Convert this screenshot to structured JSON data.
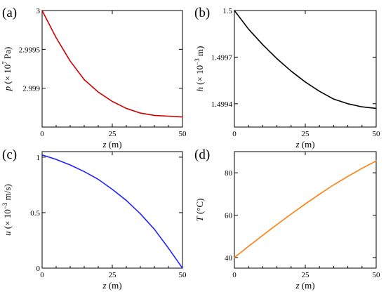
{
  "chart_data": [
    {
      "panel": "(a)",
      "type": "line",
      "xlabel": "z (m)",
      "ylabel": "p (× 10⁷ Pa)",
      "ylabel_parts": {
        "var": "p",
        "pre": " (× 10",
        "exp": "7",
        "post": " Pa)"
      },
      "xlabel_parts": {
        "var": "z",
        "post": " (m)"
      },
      "xlim": [
        0,
        50
      ],
      "ylim": [
        2.9985,
        3.0
      ],
      "xticks": [
        0,
        25,
        50
      ],
      "xtick_labels": [
        "0",
        "25",
        "50"
      ],
      "yticks": [
        3.0,
        2.9995,
        2.999
      ],
      "ytick_labels": [
        "3",
        "2.9995",
        "2.999"
      ],
      "color": "#cc0000",
      "series": [
        {
          "x": [
            0,
            5,
            10,
            15,
            20,
            25,
            30,
            35,
            40,
            45,
            50
          ],
          "y": [
            3.0,
            2.99965,
            2.99935,
            2.99911,
            2.99895,
            2.99883,
            2.99874,
            2.99868,
            2.99865,
            2.99864,
            2.99863
          ]
        }
      ]
    },
    {
      "panel": "(b)",
      "type": "line",
      "xlabel": "z (m)",
      "ylabel": "h (× 10⁻³ m)",
      "ylabel_parts": {
        "var": "h",
        "pre": " (× 10",
        "exp": "−3",
        "post": " m)"
      },
      "xlabel_parts": {
        "var": "z",
        "post": " (m)"
      },
      "xlim": [
        0,
        50
      ],
      "ylim": [
        1.49925,
        1.5
      ],
      "xticks": [
        0,
        25,
        50
      ],
      "xtick_labels": [
        "0",
        "25",
        "50"
      ],
      "yticks": [
        1.5,
        1.4997,
        1.4994
      ],
      "ytick_labels": [
        "1.5",
        "1.4997",
        "1.4994"
      ],
      "color": "#000000",
      "series": [
        {
          "x": [
            0,
            5,
            10,
            15,
            20,
            25,
            30,
            35,
            40,
            45,
            50
          ],
          "y": [
            1.5,
            1.49988,
            1.49978,
            1.49969,
            1.49961,
            1.49954,
            1.49948,
            1.49943,
            1.4994,
            1.49938,
            1.49937
          ]
        }
      ]
    },
    {
      "panel": "(c)",
      "type": "line",
      "xlabel": "z (m)",
      "ylabel": "u (× 10⁻³ m/s)",
      "ylabel_parts": {
        "var": "u",
        "pre": " (× 10",
        "exp": "−3",
        "post": " m/s)"
      },
      "xlabel_parts": {
        "var": "z",
        "post": " (m)"
      },
      "xlim": [
        0,
        50
      ],
      "ylim": [
        0,
        1.05
      ],
      "xticks": [
        0,
        25,
        50
      ],
      "xtick_labels": [
        "0",
        "25",
        "50"
      ],
      "yticks": [
        0,
        0.5,
        1
      ],
      "ytick_labels": [
        "0",
        "0.5",
        "1"
      ],
      "color": "#2222ff",
      "series": [
        {
          "x": [
            0,
            5,
            10,
            15,
            20,
            25,
            30,
            35,
            40,
            45,
            50
          ],
          "y": [
            1.02,
            0.98,
            0.93,
            0.87,
            0.8,
            0.71,
            0.61,
            0.49,
            0.35,
            0.18,
            0.0
          ]
        }
      ]
    },
    {
      "panel": "(d)",
      "type": "line",
      "xlabel": "z (m)",
      "ylabel": "T (°C)",
      "ylabel_parts": {
        "var": "T",
        "pre": " (°C)",
        "exp": "",
        "post": ""
      },
      "xlabel_parts": {
        "var": "z",
        "post": " (m)"
      },
      "xlim": [
        0,
        50
      ],
      "ylim": [
        35,
        90
      ],
      "xticks": [
        0,
        25,
        50
      ],
      "xtick_labels": [
        "0",
        "25",
        "50"
      ],
      "yticks": [
        40,
        60,
        80
      ],
      "ytick_labels": [
        "40",
        "60",
        "80"
      ],
      "color": "#ff7f0e",
      "series": [
        {
          "x": [
            0,
            5,
            10,
            15,
            20,
            25,
            30,
            35,
            40,
            45,
            50
          ],
          "y": [
            40,
            45.3,
            50.5,
            55.6,
            60.5,
            65.3,
            69.9,
            74.3,
            78.3,
            82.1,
            85.6
          ]
        }
      ]
    }
  ]
}
